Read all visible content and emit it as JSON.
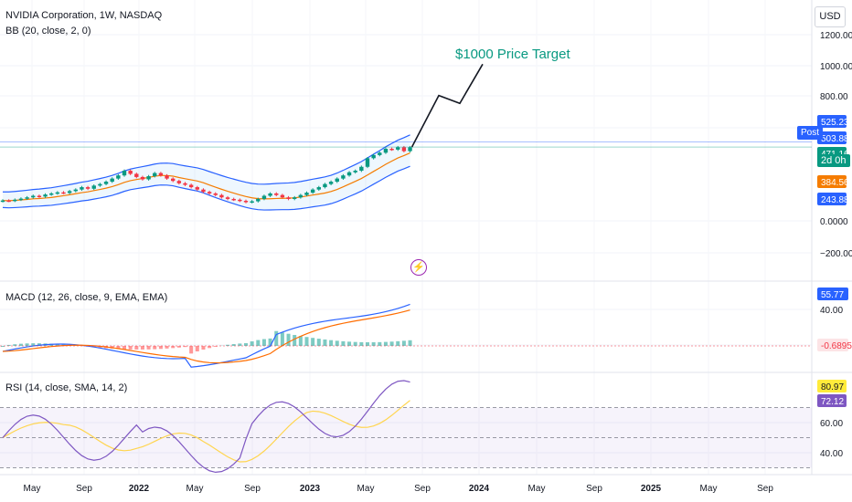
{
  "header": {
    "symbol_title": "NVIDIA Corporation, 1W, NASDAQ",
    "bb_label": "BB (20, close, 2, 0)",
    "macd_label": "MACD (12, 26, close, 9, EMA, EMA)",
    "rsi_label": "RSI (14, close, SMA, 14, 2)",
    "currency": "USD"
  },
  "annotation": {
    "target_text": "$1000 Price Target"
  },
  "badges": {
    "post": "Post",
    "countdown": "2d 0h",
    "flash_icon": "lightning-icon"
  },
  "price_scale": {
    "ticks": [
      "1200.00",
      "1000.00",
      "800.00",
      "0.0000",
      "−200.00"
    ],
    "tags": [
      {
        "text": "525.23",
        "color": "#2962ff"
      },
      {
        "text": "503.88",
        "color": "#2962ff"
      },
      {
        "text": "471.16",
        "color": "#089981"
      },
      {
        "text": "384.56",
        "color": "#f57c00"
      },
      {
        "text": "243.88",
        "color": "#2962ff"
      }
    ]
  },
  "macd_scale": {
    "ticks": [
      "40.00"
    ],
    "tags": [
      {
        "text": "55.77",
        "color": "#2962ff"
      },
      {
        "text": "-0.6895",
        "color": "#f23645"
      }
    ]
  },
  "rsi_scale": {
    "ticks": [
      "60.00",
      "40.00"
    ],
    "tags": [
      {
        "text": "80.97",
        "color": "#ffeb3b"
      },
      {
        "text": "72.12",
        "color": "#7e57c2"
      }
    ]
  },
  "time_axis": {
    "labels": [
      "May",
      "Sep",
      "2022",
      "May",
      "Sep",
      "2023",
      "May",
      "Sep",
      "2024",
      "May",
      "Sep",
      "2025",
      "May",
      "Sep"
    ]
  },
  "colors": {
    "up": "#089981",
    "down": "#f23645",
    "bb_band": "#2962ff",
    "bb_basis": "#f57c00",
    "macd": "#2962ff",
    "signal": "#ff6d00",
    "rsi": "#7e57c2",
    "rsi_ma": "#ffd54f",
    "target": "#089981"
  },
  "chart_data": [
    {
      "type": "candlestick",
      "title": "NVIDIA Corporation, 1W, NASDAQ",
      "ylim": [
        -300,
        1300
      ],
      "series": [
        {
          "name": "close",
          "values": [
            130,
            128,
            135,
            142,
            150,
            160,
            155,
            168,
            175,
            182,
            178,
            190,
            200,
            215,
            205,
            225,
            235,
            250,
            270,
            290,
            320,
            300,
            280,
            265,
            285,
            305,
            290,
            270,
            255,
            240,
            230,
            215,
            200,
            185,
            175,
            165,
            150,
            140,
            135,
            128,
            120,
            125,
            140,
            160,
            175,
            165,
            150,
            140,
            150,
            165,
            180,
            200,
            215,
            235,
            250,
            270,
            290,
            310,
            320,
            345,
            400,
            420,
            435,
            460,
            455,
            470,
            445,
            470
          ]
        }
      ],
      "bollinger": {
        "upper": 525.23,
        "basis": 384.56,
        "lower": 243.88
      },
      "annotations": [
        {
          "text": "$1000 Price Target",
          "path_prices": [
            471.16,
            800,
            750,
            1000
          ]
        }
      ]
    },
    {
      "type": "line",
      "title": "MACD (12, 26, close, 9, EMA, EMA)",
      "series": [
        {
          "name": "MACD",
          "last": 55.77
        },
        {
          "name": "Histogram",
          "last": -0.6895
        }
      ]
    },
    {
      "type": "line",
      "title": "RSI (14, close, SMA, 14, 2)",
      "ylim": [
        20,
        90
      ],
      "series": [
        {
          "name": "RSI",
          "last": 72.12
        },
        {
          "name": "RSI-based MA",
          "last": 80.97
        }
      ],
      "levels": [
        70,
        50,
        30
      ]
    }
  ]
}
